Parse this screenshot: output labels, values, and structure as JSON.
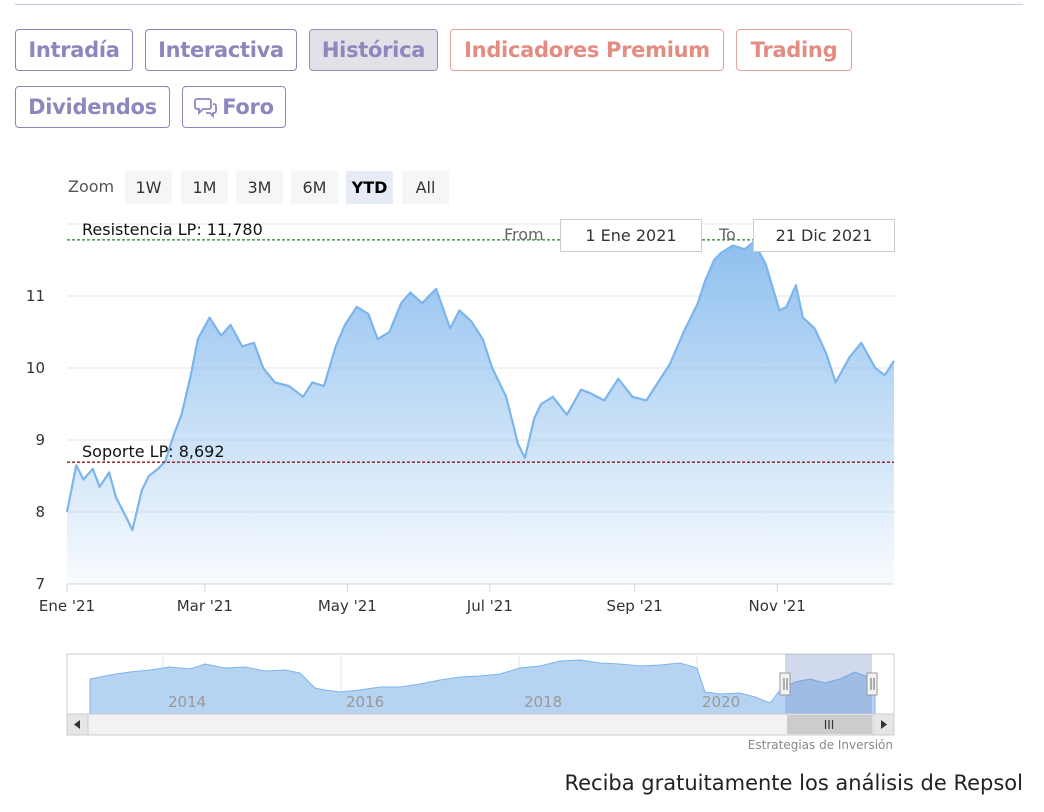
{
  "tabs": [
    {
      "label": "Intradía",
      "variant": "normal"
    },
    {
      "label": "Interactiva",
      "variant": "normal"
    },
    {
      "label": "Histórica",
      "variant": "active"
    },
    {
      "label": "Indicadores Premium",
      "variant": "premium"
    },
    {
      "label": "Trading",
      "variant": "premium"
    },
    {
      "label": "Dividendos",
      "variant": "normal"
    },
    {
      "label": "Foro",
      "variant": "normal",
      "icon": "chat-bubbles-icon"
    }
  ],
  "zoom": {
    "label": "Zoom",
    "buttons": [
      "1W",
      "1M",
      "3M",
      "6M",
      "YTD",
      "All"
    ],
    "selected": "YTD"
  },
  "range": {
    "from_label": "From",
    "from_value": "1 Ene 2021",
    "to_label": "To",
    "to_value": "21 Dic 2021"
  },
  "navigator": {
    "year_labels": [
      "2014",
      "2016",
      "2018",
      "2020"
    ],
    "scroll_grip": "III"
  },
  "colors": {
    "tab_text": "#8c87bd",
    "premium_text": "#e38d82",
    "series_line": "#7cb5ec",
    "resistance_line": "#2e7d32",
    "support_line": "#8b1a1a"
  },
  "chart_data": {
    "type": "area",
    "title": "",
    "xlabel": "",
    "ylabel": "",
    "ylim": [
      7,
      12
    ],
    "x_ticks": [
      "Ene '21",
      "Mar '21",
      "May '21",
      "Jul '21",
      "Sep '21",
      "Nov '21"
    ],
    "y_ticks": [
      7,
      8,
      9,
      10,
      11
    ],
    "grid": true,
    "series": [
      {
        "x": [
          "2021-01-01",
          "2021-01-05",
          "2021-01-08",
          "2021-01-12",
          "2021-01-15",
          "2021-01-19",
          "2021-01-22",
          "2021-01-26",
          "2021-01-29",
          "2021-02-02",
          "2021-02-05",
          "2021-02-09",
          "2021-02-12",
          "2021-02-16",
          "2021-02-19",
          "2021-02-23",
          "2021-02-26",
          "2021-03-03",
          "2021-03-08",
          "2021-03-12",
          "2021-03-17",
          "2021-03-22",
          "2021-03-26",
          "2021-03-31",
          "2021-04-06",
          "2021-04-12",
          "2021-04-16",
          "2021-04-21",
          "2021-04-26",
          "2021-04-30",
          "2021-05-05",
          "2021-05-10",
          "2021-05-14",
          "2021-05-19",
          "2021-05-24",
          "2021-05-28",
          "2021-06-02",
          "2021-06-08",
          "2021-06-14",
          "2021-06-18",
          "2021-06-23",
          "2021-06-28",
          "2021-07-02",
          "2021-07-08",
          "2021-07-13",
          "2021-07-16",
          "2021-07-20",
          "2021-07-23",
          "2021-07-28",
          "2021-08-03",
          "2021-08-09",
          "2021-08-13",
          "2021-08-19",
          "2021-08-25",
          "2021-08-31",
          "2021-09-06",
          "2021-09-10",
          "2021-09-16",
          "2021-09-22",
          "2021-09-28",
          "2021-10-01",
          "2021-10-05",
          "2021-10-08",
          "2021-10-13",
          "2021-10-18",
          "2021-10-22",
          "2021-10-27",
          "2021-11-02",
          "2021-11-05",
          "2021-11-09",
          "2021-11-12",
          "2021-11-17",
          "2021-11-22",
          "2021-11-26",
          "2021-12-02",
          "2021-12-07",
          "2021-12-13",
          "2021-12-17",
          "2021-12-21"
        ],
        "values": [
          8.0,
          8.65,
          8.45,
          8.6,
          8.35,
          8.55,
          8.2,
          7.95,
          7.75,
          8.3,
          8.5,
          8.6,
          8.7,
          9.1,
          9.35,
          9.9,
          10.4,
          10.7,
          10.45,
          10.6,
          10.3,
          10.35,
          10.0,
          9.8,
          9.75,
          9.6,
          9.8,
          9.75,
          10.3,
          10.6,
          10.85,
          10.75,
          10.4,
          10.5,
          10.9,
          11.05,
          10.9,
          11.1,
          10.55,
          10.8,
          10.65,
          10.4,
          10.0,
          9.6,
          8.95,
          8.75,
          9.3,
          9.5,
          9.6,
          9.35,
          9.7,
          9.65,
          9.55,
          9.85,
          9.6,
          9.55,
          9.75,
          10.05,
          10.5,
          10.9,
          11.2,
          11.5,
          11.6,
          11.7,
          11.65,
          11.75,
          11.45,
          10.8,
          10.85,
          11.15,
          10.7,
          10.55,
          10.2,
          9.8,
          10.15,
          10.35,
          10.0,
          9.9,
          10.1
        ]
      }
    ],
    "annotations": [
      {
        "label": "Resistencia LP: 11,780",
        "value": 11.78,
        "style": "dashed"
      },
      {
        "label": "Soporte LP: 8,692",
        "value": 8.692,
        "style": "dashed"
      }
    ]
  },
  "footer": {
    "credit": "Estrategias de Inversión",
    "promo": "Reciba gratuitamente los análisis de Repsol"
  }
}
